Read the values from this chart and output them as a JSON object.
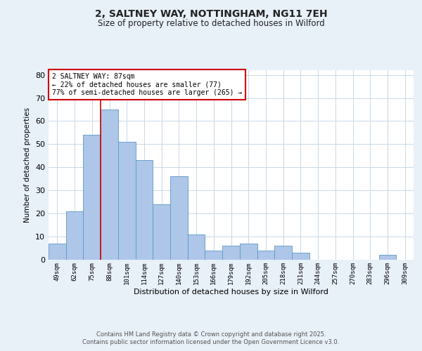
{
  "title_line1": "2, SALTNEY WAY, NOTTINGHAM, NG11 7EH",
  "title_line2": "Size of property relative to detached houses in Wilford",
  "xlabel": "Distribution of detached houses by size in Wilford",
  "ylabel": "Number of detached properties",
  "bar_labels": [
    "49sqm",
    "62sqm",
    "75sqm",
    "88sqm",
    "101sqm",
    "114sqm",
    "127sqm",
    "140sqm",
    "153sqm",
    "166sqm",
    "179sqm",
    "192sqm",
    "205sqm",
    "218sqm",
    "231sqm",
    "244sqm",
    "257sqm",
    "270sqm",
    "283sqm",
    "296sqm",
    "309sqm"
  ],
  "bar_values": [
    7,
    21,
    54,
    65,
    51,
    43,
    24,
    36,
    11,
    4,
    6,
    7,
    4,
    6,
    3,
    0,
    0,
    0,
    0,
    2,
    0
  ],
  "bar_color": "#aec6e8",
  "bar_edge_color": "#5a9ac8",
  "vline_x": 2.5,
  "vline_color": "#cc0000",
  "annotation_text": "2 SALTNEY WAY: 87sqm\n← 22% of detached houses are smaller (77)\n77% of semi-detached houses are larger (265) →",
  "annotation_box_color": "#ffffff",
  "annotation_box_edge": "#cc0000",
  "grid_color": "#c8d8e8",
  "background_color": "#e8f0f8",
  "plot_bg_color": "#ffffff",
  "footer_text": "Contains HM Land Registry data © Crown copyright and database right 2025.\nContains public sector information licensed under the Open Government Licence v3.0.",
  "ylim": [
    0,
    82
  ],
  "yticks": [
    0,
    10,
    20,
    30,
    40,
    50,
    60,
    70,
    80
  ]
}
